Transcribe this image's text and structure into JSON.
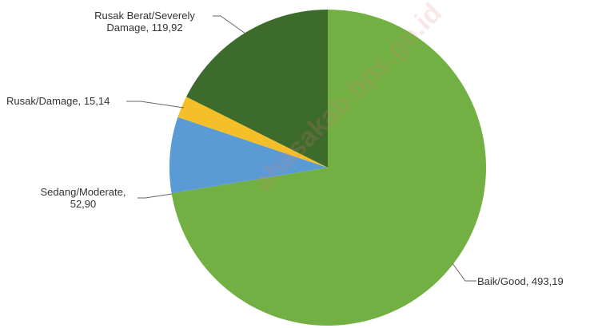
{
  "chart_data": {
    "type": "pie",
    "categories": [
      "Baik/Good",
      "Sedang/Moderate",
      "Rusak/Damage",
      "Rusak Berat/Severely Damage"
    ],
    "values": [
      493.19,
      52.9,
      15.14,
      119.92
    ],
    "labels": [
      "Baik/Good, 493,19",
      "Sedang/Moderate, 52,90",
      "Rusak/Damage, 15,14",
      "Rusak Berat/Severely Damage, 119,92"
    ],
    "colors": [
      "#72b043",
      "#5b9bd5",
      "#f5bf2a",
      "#3d6b2b"
    ],
    "watermark": "ahasakab.bps.go.id"
  }
}
